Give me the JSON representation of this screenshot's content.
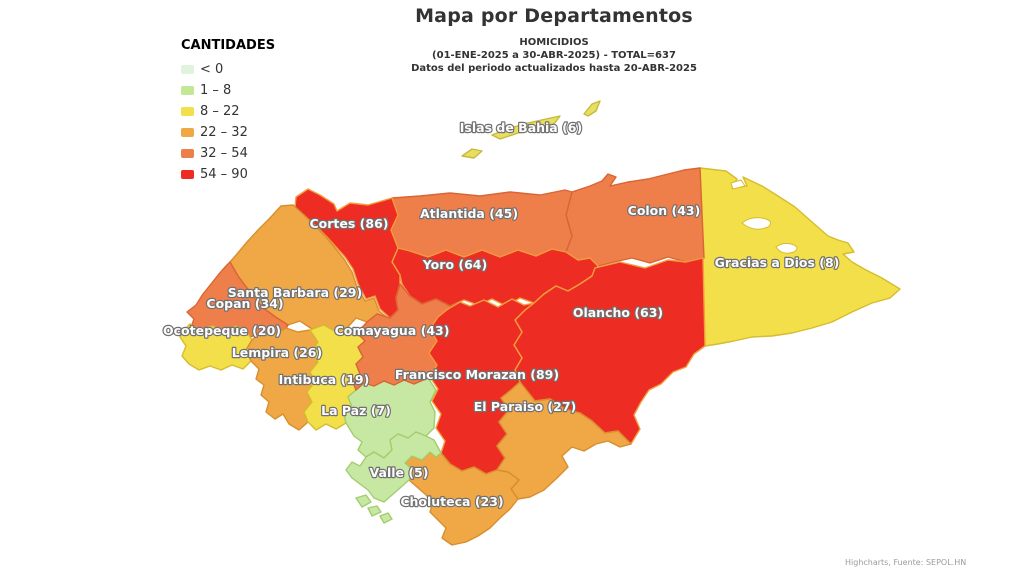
{
  "title": "Mapa por Departamentos",
  "subtitle": {
    "line1": "HOMICIDIOS",
    "line2": "(01-ENE-2025 a 30-ABR-2025) - TOTAL=637",
    "line3": "Datos del periodo actualizados hasta 20-ABR-2025"
  },
  "credit": "Highcharts, Fuente: SEPOL.HN",
  "legend": {
    "title": "CANTIDADES",
    "items": [
      {
        "label": "< 0",
        "color": "#e1f3dc"
      },
      {
        "label": "1 – 8",
        "color": "#c3e794"
      },
      {
        "label": "8 – 22",
        "color": "#f2df4a"
      },
      {
        "label": "22 – 32",
        "color": "#efa845"
      },
      {
        "label": "32 – 54",
        "color": "#ee7f4b"
      },
      {
        "label": "54 – 90",
        "color": "#ed2d24"
      }
    ]
  },
  "chart_data": {
    "type": "choropleth-map",
    "region": "Honduras, departamentos",
    "title": "Mapa por Departamentos",
    "metric": "Homicidios 01-ENE-2025 a 30-ABR-2025",
    "total": 637,
    "updated_through": "20-ABR-2025",
    "legend_position": "top-left",
    "classes": [
      "< 0",
      "1 – 8",
      "8 – 22",
      "22 – 32",
      "32 – 54",
      "54 – 90"
    ],
    "departments": [
      {
        "id": "gracias_a_dios",
        "name": "Gracias a Dios",
        "value": 8,
        "label": "Gracias a Dios (8)",
        "class": "8 – 22"
      },
      {
        "id": "colon",
        "name": "Colon",
        "value": 43,
        "label": "Colon (43)",
        "class": "32 – 54"
      },
      {
        "id": "atlantida",
        "name": "Atlantida",
        "value": 45,
        "label": "Atlantida (45)",
        "class": "32 – 54"
      },
      {
        "id": "yoro",
        "name": "Yoro",
        "value": 64,
        "label": "Yoro (64)",
        "class": "54 – 90"
      },
      {
        "id": "cortes",
        "name": "Cortes",
        "value": 86,
        "label": "Cortes (86)",
        "class": "54 – 90"
      },
      {
        "id": "santa_barbara",
        "name": "Santa Barbara",
        "value": 29,
        "label": "Santa Barbara (29)",
        "class": "22 – 32"
      },
      {
        "id": "copan",
        "name": "Copan",
        "value": 34,
        "label": "Copan (34)",
        "class": "32 – 54"
      },
      {
        "id": "ocotepeque",
        "name": "Ocotepeque",
        "value": 20,
        "label": "Ocotepeque (20)",
        "class": "8 – 22"
      },
      {
        "id": "lempira",
        "name": "Lempira",
        "value": 26,
        "label": "Lempira (26)",
        "class": "22 – 32"
      },
      {
        "id": "intibuca",
        "name": "Intibuca",
        "value": 19,
        "label": "Intibuca (19)",
        "class": "8 – 22"
      },
      {
        "id": "la_paz",
        "name": "La Paz",
        "value": 7,
        "label": "La Paz (7)",
        "class": "1 – 8"
      },
      {
        "id": "comayagua",
        "name": "Comayagua",
        "value": 43,
        "label": "Comayagua (43)",
        "class": "32 – 54"
      },
      {
        "id": "olancho",
        "name": "Olancho",
        "value": 63,
        "label": "Olancho (63)",
        "class": "54 – 90"
      },
      {
        "id": "francisco_morazan",
        "name": "Francisco Morazan",
        "value": 89,
        "label": "Francisco Morazan (89)",
        "class": "54 – 90"
      },
      {
        "id": "el_paraiso",
        "name": "El Paraiso",
        "value": 27,
        "label": "El Paraiso (27)",
        "class": "22 – 32"
      },
      {
        "id": "choluteca",
        "name": "Choluteca",
        "value": 23,
        "label": "Choluteca (23)",
        "class": "22 – 32"
      },
      {
        "id": "valle",
        "name": "Valle",
        "value": 5,
        "label": "Valle (5)",
        "class": "1 – 8"
      },
      {
        "id": "islas_de_bahia",
        "name": "Islas de Bahia",
        "value": 6,
        "label": "Islas de Bahia (6)",
        "class": "1 – 8"
      }
    ]
  }
}
